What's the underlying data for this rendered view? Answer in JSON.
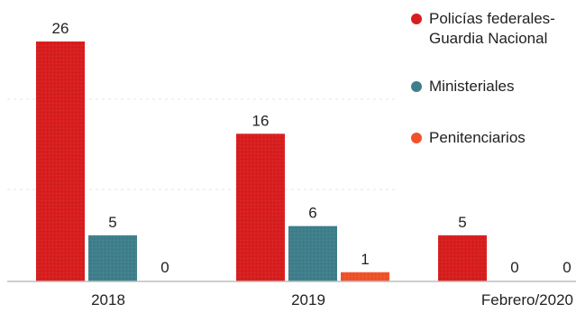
{
  "chart_data": {
    "type": "bar",
    "categories": [
      "2018",
      "2019",
      "Febrero/2020"
    ],
    "series": [
      {
        "name": "Policías federales-Guardia Nacional",
        "name_lines": [
          "Policías federales-",
          "Guardia Nacional"
        ],
        "color": "#d81e1e",
        "values": [
          26,
          16,
          5
        ]
      },
      {
        "name": "Ministeriales",
        "name_lines": [
          "Ministeriales"
        ],
        "color": "#3f7f8c",
        "values": [
          5,
          6,
          0
        ]
      },
      {
        "name": "Penitenciarios",
        "name_lines": [
          "Penitenciarios"
        ],
        "color": "#f0522a",
        "values": [
          0,
          1,
          0
        ]
      }
    ],
    "ylim": [
      0,
      26
    ],
    "grid": true,
    "legend_position": "top-right",
    "title": "",
    "xlabel": "",
    "ylabel": ""
  }
}
